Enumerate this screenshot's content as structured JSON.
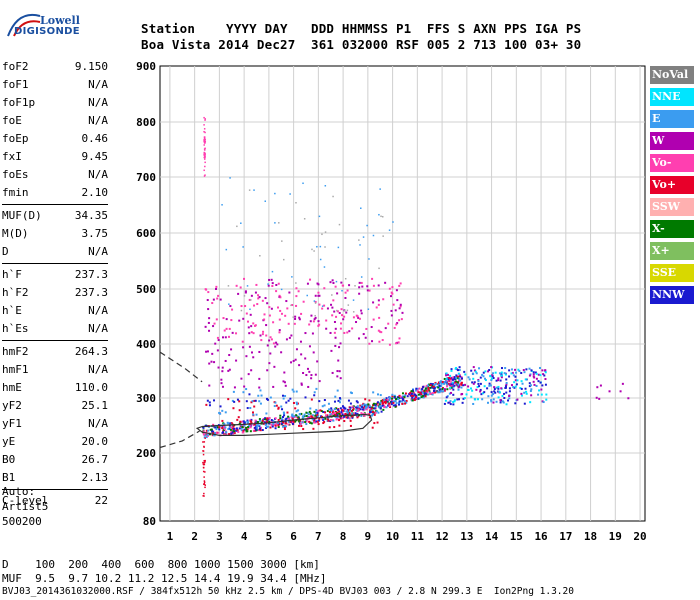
{
  "logo": {
    "line1": "Lowell",
    "line2": "DIGISONDE"
  },
  "header": {
    "row1": "Station    YYYY DAY   DDD HHMMSS P1  FFS S AXN PPS IGA PS",
    "row2": "Boa Vista 2014 Dec27  361 032000 RSF 005 2 713 100 03+ 30"
  },
  "params": [
    [
      [
        "foF2",
        "9.150"
      ],
      [
        "foF1",
        "N/A"
      ],
      [
        "foF1p",
        "N/A"
      ],
      [
        "foE",
        "N/A"
      ],
      [
        "foEp",
        "0.46"
      ],
      [
        "fxI",
        "9.45"
      ],
      [
        "foEs",
        "N/A"
      ],
      [
        "fmin",
        "2.10"
      ]
    ],
    [
      [
        "MUF(D)",
        "34.35"
      ],
      [
        "M(D)",
        "3.75"
      ],
      [
        "D",
        "N/A"
      ]
    ],
    [
      [
        "h`F",
        "237.3"
      ],
      [
        "h`F2",
        "237.3"
      ],
      [
        "h`E",
        "N/A"
      ],
      [
        "h`Es",
        "N/A"
      ]
    ],
    [
      [
        "hmF2",
        "264.3"
      ],
      [
        "hmF1",
        "N/A"
      ],
      [
        "hmE",
        "110.0"
      ],
      [
        "yF2",
        "25.1"
      ],
      [
        "yF1",
        "N/A"
      ],
      [
        "yE",
        "20.0"
      ],
      [
        "B0",
        "26.7"
      ],
      [
        "B1",
        "2.13"
      ]
    ],
    [
      [
        "C-level",
        "22"
      ]
    ]
  ],
  "auto": [
    "Auto:",
    "Artist5",
    "500200"
  ],
  "bottom": {
    "d_row": "D    100  200  400  600  800 1000 1500 3000 [km]",
    "muf_row": "MUF  9.5  9.7 10.2 11.2 12.5 14.4 19.9 34.4 [MHz]",
    "file_row": "BVJ03_2014361032000.RSF / 384fx512h 50 kHz 2.5 km / DPS-4D BVJ03 003 / 2.8 N 299.3 E  Ion2Png 1.3.20"
  },
  "legend": [
    {
      "label": "NoVal",
      "color": "#808080"
    },
    {
      "label": "NNE",
      "color": "#00e5ff"
    },
    {
      "label": "E",
      "color": "#3b9cf0"
    },
    {
      "label": "W",
      "color": "#b000b0"
    },
    {
      "label": "Vo-",
      "color": "#ff3fb0"
    },
    {
      "label": "Vo+",
      "color": "#e8002a"
    },
    {
      "label": "SSW",
      "color": "#ffb0b0"
    },
    {
      "label": "X-",
      "color": "#007a00"
    },
    {
      "label": "X+",
      "color": "#7fbf5f"
    },
    {
      "label": "SSE",
      "color": "#d8d800"
    },
    {
      "label": "NNW",
      "color": "#1a1ad0"
    }
  ],
  "chart_data": {
    "type": "scatter",
    "xlabel": "",
    "ylabel": "",
    "xlim": [
      0.6,
      20.2
    ],
    "ylim": [
      80,
      900
    ],
    "xticks": [
      1,
      2,
      3,
      4,
      5,
      6,
      7,
      8,
      9,
      10,
      11,
      12,
      13,
      14,
      15,
      16,
      17,
      18,
      19,
      20
    ],
    "yticks": [
      80,
      200,
      300,
      400,
      500,
      600,
      700,
      800,
      900
    ],
    "grid": true,
    "legend_position": "right",
    "profile_curve": {
      "x": [
        2.1,
        2.3,
        3,
        4,
        5,
        6,
        7,
        8,
        8.8,
        9.15,
        9.1,
        8.9,
        8,
        7,
        6,
        5,
        4,
        3,
        2.3,
        2.1
      ],
      "y": [
        245,
        238,
        232,
        232,
        234,
        236,
        238,
        240,
        245,
        260,
        268,
        270,
        268,
        264,
        260,
        255,
        252,
        250,
        248,
        245
      ]
    },
    "dashed_trace": {
      "x": [
        0.6,
        1.5,
        2.2
      ],
      "y": [
        210,
        222,
        240
      ],
      "x2": [
        0.6,
        1.6,
        2.3
      ],
      "y2": [
        385,
        355,
        330
      ]
    },
    "clusters": [
      {
        "name": "Vo+",
        "x": [
          2.3,
          9.5
        ],
        "y": [
          245,
          300
        ]
      },
      {
        "name": "W",
        "x": [
          2.4,
          8
        ],
        "y": [
          320,
          400
        ]
      },
      {
        "name": "E",
        "x": [
          2.5,
          10
        ],
        "y": [
          270,
          320
        ]
      },
      {
        "name": "NNW",
        "x": [
          2.4,
          9
        ],
        "y": [
          280,
          310
        ]
      },
      {
        "name": "NNW",
        "x": [
          13.5,
          15.5
        ],
        "y": [
          300,
          350
        ]
      },
      {
        "name": "W",
        "x": [
          18,
          19.6
        ],
        "y": [
          300,
          330
        ]
      }
    ]
  }
}
